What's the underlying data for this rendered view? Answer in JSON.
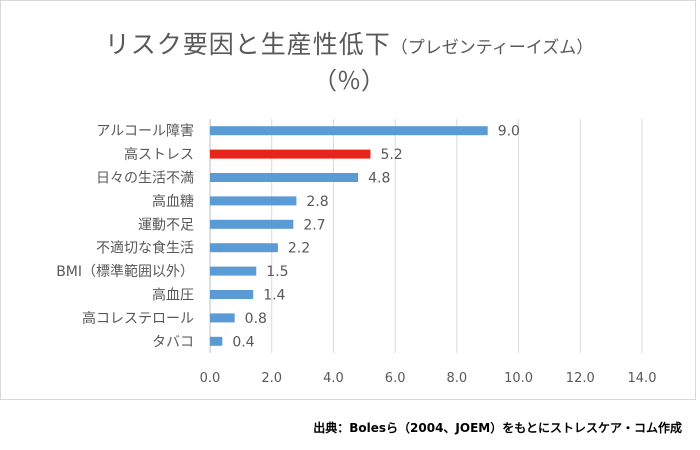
{
  "chart_data": {
    "type": "bar",
    "orientation": "horizontal",
    "title": "リスク要因と生産性低下",
    "title_suffix": "（プレゼンティーイズム）",
    "subtitle": "（％）",
    "categories": [
      "アルコール障害",
      "高ストレス",
      "日々の生活不満",
      "高血糖",
      "運動不足",
      "不適切な食生活",
      "BMI（標準範囲以外）",
      "高血圧",
      "高コレステロール",
      "タバコ"
    ],
    "values": [
      9.0,
      5.2,
      4.8,
      2.8,
      2.7,
      2.2,
      1.5,
      1.4,
      0.8,
      0.4
    ],
    "value_labels": [
      "9.0",
      "5.2",
      "4.8",
      "2.8",
      "2.7",
      "2.2",
      "1.5",
      "1.4",
      "0.8",
      "0.4"
    ],
    "highlight_index": 1,
    "xlim": [
      0,
      14
    ],
    "xticks": [
      "0.0",
      "2.0",
      "4.0",
      "6.0",
      "8.0",
      "10.0",
      "12.0",
      "14.0"
    ],
    "grid": "vertical",
    "colors": {
      "bar": "#5b9bd5",
      "highlight": "#e8251c",
      "grid": "#d9d9d9",
      "text": "#595959"
    }
  },
  "source_note": "出典：Bolesら（2004、JOEM）をもとにストレスケア・コム作成"
}
